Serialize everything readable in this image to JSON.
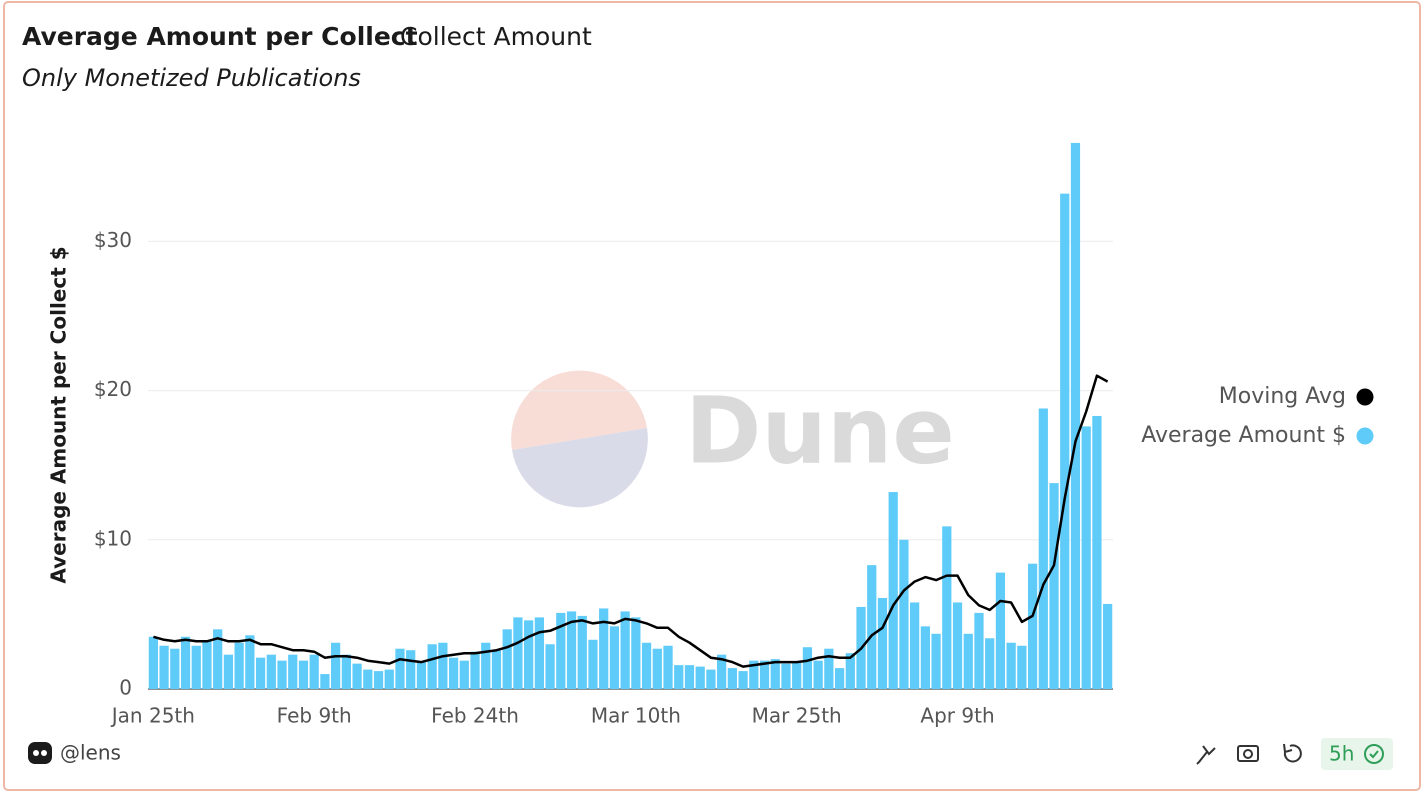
{
  "chart_data": {
    "type": "bar",
    "title": "Average Amount per Collect",
    "subtitle": "Only Monetized Publications",
    "y_label": "Average Amount per Collect $",
    "categories": [
      "Jan 25th",
      null,
      null,
      null,
      null,
      null,
      null,
      null,
      null,
      null,
      null,
      null,
      null,
      null,
      null,
      "Feb 9th",
      null,
      null,
      null,
      null,
      null,
      null,
      null,
      null,
      null,
      null,
      null,
      null,
      null,
      null,
      "Feb 24th",
      null,
      null,
      null,
      null,
      null,
      null,
      null,
      null,
      null,
      null,
      null,
      null,
      null,
      null,
      "Mar 10th",
      null,
      null,
      null,
      null,
      null,
      null,
      null,
      null,
      null,
      null,
      null,
      null,
      null,
      null,
      "Mar 25th",
      null,
      null,
      null,
      null,
      null,
      null,
      null,
      null,
      null,
      null,
      null,
      null,
      null,
      null,
      "Apr 9th",
      null,
      null,
      null,
      null,
      null,
      null,
      null,
      null,
      null,
      null,
      null,
      null,
      null,
      null
    ],
    "series": [
      {
        "name": "Moving Avg",
        "type": "line",
        "color": "#000000",
        "values": [
          3.5,
          3.3,
          3.2,
          3.3,
          3.2,
          3.2,
          3.4,
          3.2,
          3.2,
          3.3,
          3.0,
          3.0,
          2.8,
          2.6,
          2.6,
          2.5,
          2.1,
          2.2,
          2.2,
          2.1,
          1.9,
          1.8,
          1.7,
          2.0,
          1.9,
          1.8,
          2.0,
          2.2,
          2.3,
          2.4,
          2.4,
          2.5,
          2.6,
          2.8,
          3.1,
          3.5,
          3.8,
          3.9,
          4.2,
          4.5,
          4.6,
          4.4,
          4.5,
          4.4,
          4.7,
          4.6,
          4.4,
          4.1,
          4.1,
          3.5,
          3.1,
          2.6,
          2.1,
          2.0,
          1.8,
          1.5,
          1.6,
          1.7,
          1.8,
          1.8,
          1.8,
          1.9,
          2.1,
          2.2,
          2.1,
          2.1,
          2.7,
          3.6,
          4.1,
          5.6,
          6.6,
          7.2,
          7.5,
          7.3,
          7.6,
          7.6,
          6.3,
          5.6,
          5.3,
          5.9,
          5.8,
          4.5,
          4.9,
          7.0,
          8.3,
          12.8,
          16.6,
          18.6,
          21.0,
          20.6
        ]
      },
      {
        "name": "Average Amount $",
        "type": "bar",
        "color": "#5ecbf8",
        "values": [
          3.5,
          2.9,
          2.7,
          3.5,
          2.9,
          3.2,
          4.0,
          2.3,
          3.1,
          3.6,
          2.1,
          2.3,
          1.9,
          2.3,
          1.9,
          2.3,
          1.0,
          3.1,
          2.3,
          1.7,
          1.3,
          1.2,
          1.3,
          2.7,
          2.6,
          1.8,
          3.0,
          3.1,
          2.1,
          1.9,
          2.5,
          3.1,
          2.6,
          4.0,
          4.8,
          4.6,
          4.8,
          3.0,
          5.1,
          5.2,
          4.9,
          3.3,
          5.4,
          4.2,
          5.2,
          4.8,
          3.1,
          2.7,
          2.9,
          1.6,
          1.6,
          1.5,
          1.3,
          2.3,
          1.4,
          1.2,
          1.9,
          1.9,
          2.0,
          1.7,
          1.8,
          2.8,
          1.9,
          2.7,
          1.4,
          2.4,
          5.5,
          8.3,
          6.1,
          13.2,
          10.0,
          5.8,
          4.2,
          3.7,
          10.9,
          5.8,
          3.7,
          5.1,
          3.4,
          7.8,
          3.1,
          2.9,
          8.4,
          18.8,
          13.8,
          33.2,
          36.6,
          17.6,
          18.3,
          5.7
        ]
      }
    ],
    "ylim": [
      0,
      37.6
    ],
    "yticks": [
      0,
      {
        "value": 10,
        "label": "$10"
      },
      {
        "value": 20,
        "label": "$20"
      },
      {
        "value": 30,
        "label": "$30"
      }
    ],
    "grid": true,
    "legend": "right"
  },
  "tabs": [
    "Collect Amount"
  ],
  "watermark": "Dune",
  "footer": {
    "author": "@lens",
    "refreshed": "5h"
  }
}
